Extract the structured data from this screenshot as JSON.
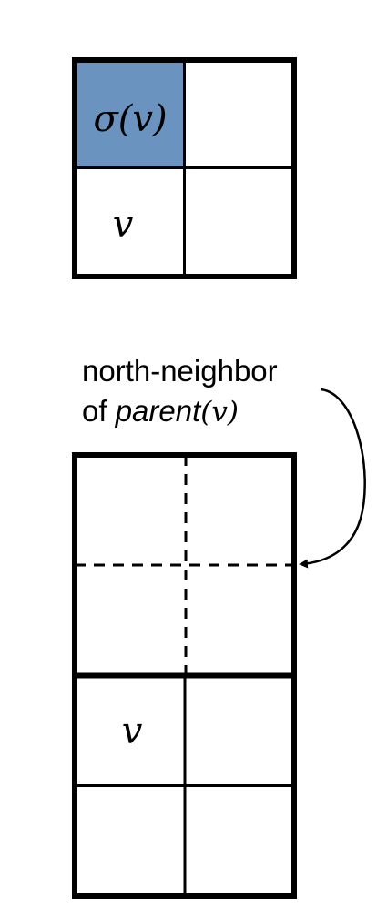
{
  "top_grid": {
    "highlight_label": "σ(v)",
    "cell_label": "v",
    "highlight_color": "#6A94BF"
  },
  "annotation": {
    "line1": "north-neighbor",
    "line2_prefix": "of ",
    "line2_italic": "parent",
    "line2_suffix": "(v)"
  },
  "bottom_grid": {
    "cell_label": "v"
  },
  "colors": {
    "stroke": "#000000",
    "background": "#ffffff"
  }
}
